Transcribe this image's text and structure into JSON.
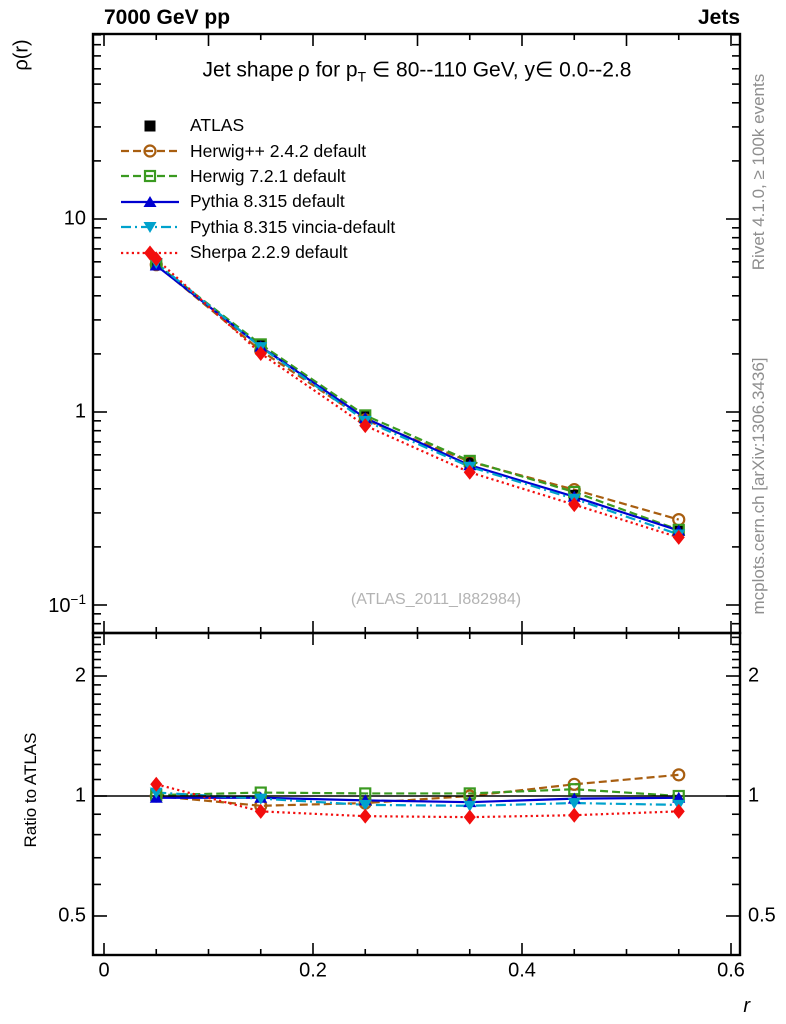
{
  "header": {
    "left_label": "7000 GeV pp",
    "right_label": "Jets"
  },
  "title": {
    "part1": "Jet shape ρ for p",
    "sub": "T",
    "part2": " ∈ 80--110 GeV, y∈ 0.0--2.8"
  },
  "axis_labels": {
    "y_main": "ρ(r)",
    "y_ratio": "Ratio to ATLAS",
    "x": "r"
  },
  "side_notes": {
    "rivet": "Rivet 4.1.0, ≥ 100k events",
    "mcplots": "mcplots.cern.ch [arXiv:1306.3436]",
    "watermark": "(ATLAS_2011_I882984)"
  },
  "colors": {
    "atlas": "#000000",
    "herwigpp": "#a85e10",
    "herwig7": "#3a9a20",
    "pythia": "#0000d0",
    "vincia": "#00a2cc",
    "sherpa": "#f20d0d",
    "note_gray": "#8e8e8e",
    "watermark_gray": "#b3b3b3"
  },
  "chart_data": {
    "type": "line",
    "x": [
      0.05,
      0.15,
      0.25,
      0.35,
      0.45,
      0.55
    ],
    "x_axis": {
      "label": "r",
      "range": [
        -0.011,
        0.609
      ],
      "major_ticks": [
        0,
        0.2,
        0.4,
        0.6
      ],
      "minor_step": 0.05,
      "tick_labels": [
        {
          "value": 0.0,
          "label": "0"
        },
        {
          "value": 0.2,
          "label": "0.2"
        },
        {
          "value": 0.4,
          "label": "0.4"
        },
        {
          "value": 0.6,
          "label": "0.6"
        }
      ]
    },
    "y_main_axis": {
      "scale": "log",
      "range": [
        0.072,
        91
      ],
      "tick_labels": [
        {
          "value": 10,
          "label": "10"
        },
        {
          "value": 1,
          "label": "1"
        },
        {
          "value": 0.1,
          "label": "10|−1"
        }
      ]
    },
    "y_ratio_axis": {
      "scale": "log",
      "range": [
        0.4,
        2.56
      ],
      "tick_labels": [
        {
          "value": 2,
          "label": "2"
        },
        {
          "value": 1,
          "label": "1"
        },
        {
          "value": 0.5,
          "label": "0.5"
        }
      ]
    },
    "ratio_reference_line": 1,
    "series": [
      {
        "name": "ATLAS",
        "color": "#000000",
        "marker": "square-filled",
        "line": "none",
        "values": [
          5.8,
          2.2,
          0.95,
          0.55,
          0.37,
          0.245
        ],
        "ratio": [
          1.0,
          1.0,
          1.0,
          1.0,
          1.0,
          1.0
        ]
      },
      {
        "name": "Herwig++ 2.4.2 default",
        "color": "#a85e10",
        "marker": "circle-open",
        "line": "dashed",
        "values": [
          5.8,
          2.08,
          0.91,
          0.553,
          0.396,
          0.277
        ],
        "ratio": [
          1.0,
          0.945,
          0.96,
          1.0,
          1.07,
          1.13
        ]
      },
      {
        "name": "Herwig 7.2.1 default",
        "color": "#3a9a20",
        "marker": "square-open",
        "line": "dashed",
        "values": [
          5.83,
          2.24,
          0.96,
          0.558,
          0.385,
          0.245
        ],
        "ratio": [
          1.005,
          1.02,
          1.015,
          1.015,
          1.04,
          1.0
        ]
      },
      {
        "name": "Pythia 8.315 default",
        "color": "#0000d0",
        "marker": "triangle-up-filled",
        "line": "solid",
        "values": [
          5.74,
          2.18,
          0.93,
          0.53,
          0.364,
          0.243
        ],
        "ratio": [
          0.99,
          0.99,
          0.975,
          0.965,
          0.985,
          0.99
        ]
      },
      {
        "name": "Pythia 8.315 vincia-default",
        "color": "#00a2cc",
        "marker": "triangle-down-filled",
        "line": "dashdot",
        "values": [
          5.92,
          2.17,
          0.9,
          0.52,
          0.355,
          0.232
        ],
        "ratio": [
          1.02,
          0.985,
          0.95,
          0.945,
          0.96,
          0.95
        ]
      },
      {
        "name": "Sherpa 2.2.9 default",
        "color": "#f20d0d",
        "marker": "diamond-filled",
        "line": "dotted",
        "values": [
          6.21,
          2.01,
          0.85,
          0.487,
          0.331,
          0.224
        ],
        "ratio": [
          1.07,
          0.915,
          0.89,
          0.885,
          0.895,
          0.915
        ]
      }
    ]
  }
}
